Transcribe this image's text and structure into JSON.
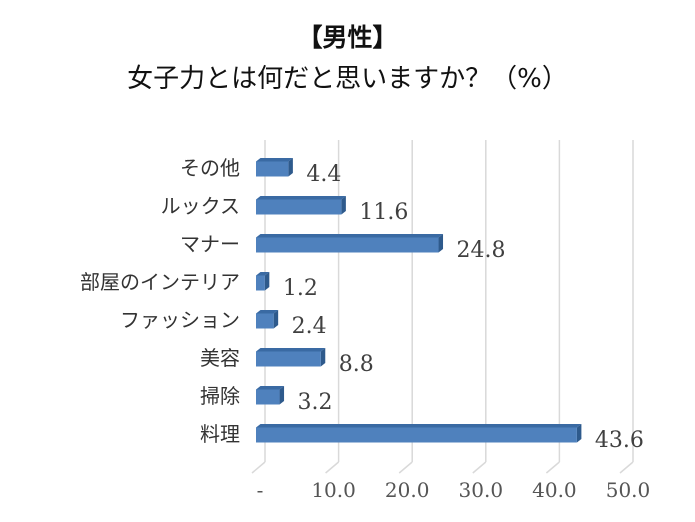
{
  "chart_data": {
    "type": "bar",
    "orientation": "horizontal",
    "style": "3d",
    "title": "【男性】",
    "subtitle": "女子力とは何だと思いますか？（%）",
    "categories": [
      "その他",
      "ルックス",
      "マナー",
      "部屋のインテリア",
      "ファッション",
      "美容",
      "掃除",
      "料理"
    ],
    "values": [
      4.4,
      11.6,
      24.8,
      1.2,
      2.4,
      8.8,
      3.2,
      43.6
    ],
    "value_labels": [
      "4.4",
      "11.6",
      "24.8",
      "1.2",
      "2.4",
      "8.8",
      "3.2",
      "43.6"
    ],
    "xlim": [
      0,
      50
    ],
    "x_ticks": [
      0,
      10,
      20,
      30,
      40,
      50
    ],
    "x_tick_labels": [
      "-",
      "10.0",
      "20.0",
      "30.0",
      "40.0",
      "50.0"
    ],
    "grid": true,
    "legend": "none",
    "bar_color": "#4F81BD",
    "bar_side_color": "#2E5A8C",
    "bar_top_color": "#3A6AA3"
  }
}
